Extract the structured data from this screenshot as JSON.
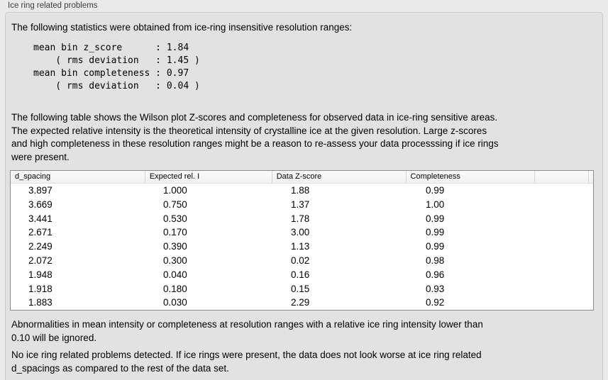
{
  "panel": {
    "title": "Ice ring related problems"
  },
  "intro": "The following statistics were obtained from ice-ring insensitive resolution ranges:",
  "statistics_text": "mean bin z_score      : 1.84\n    ( rms deviation   : 1.45 )\nmean bin completeness : 0.97\n    ( rms deviation   : 0.04 )",
  "table_description": "The following table shows the Wilson plot Z-scores and completeness for observed data in ice-ring sensitive areas.\nThe expected relative intensity is the theoretical intensity of crystalline ice at the given resolution. Large z-scores\nand high completeness in these resolution ranges might be a reason to re-assess your data processsing if ice rings\nwere present.",
  "table": {
    "columns": [
      "d_spacing",
      "Expected rel. I",
      "Data Z-score",
      "Completeness"
    ],
    "rows": [
      [
        "3.897",
        "1.000",
        "1.88",
        "0.99"
      ],
      [
        "3.669",
        "0.750",
        "1.37",
        "1.00"
      ],
      [
        "3.441",
        "0.530",
        "1.78",
        "0.99"
      ],
      [
        "2.671",
        "0.170",
        "3.00",
        "0.99"
      ],
      [
        "2.249",
        "0.390",
        "1.13",
        "0.99"
      ],
      [
        "2.072",
        "0.300",
        "0.02",
        "0.98"
      ],
      [
        "1.948",
        "0.040",
        "0.16",
        "0.96"
      ],
      [
        "1.918",
        "0.180",
        "0.15",
        "0.93"
      ],
      [
        "1.883",
        "0.030",
        "2.29",
        "0.92"
      ]
    ]
  },
  "ignore_note": "Abnormalities in mean intensity or completeness at resolution ranges with a relative ice ring intensity lower than\n0.10 will be ignored.",
  "conclusion": "No ice ring related problems detected. If ice rings were present, the data does not look worse at ice ring related\nd_spacings as compared to the rest of the data set."
}
